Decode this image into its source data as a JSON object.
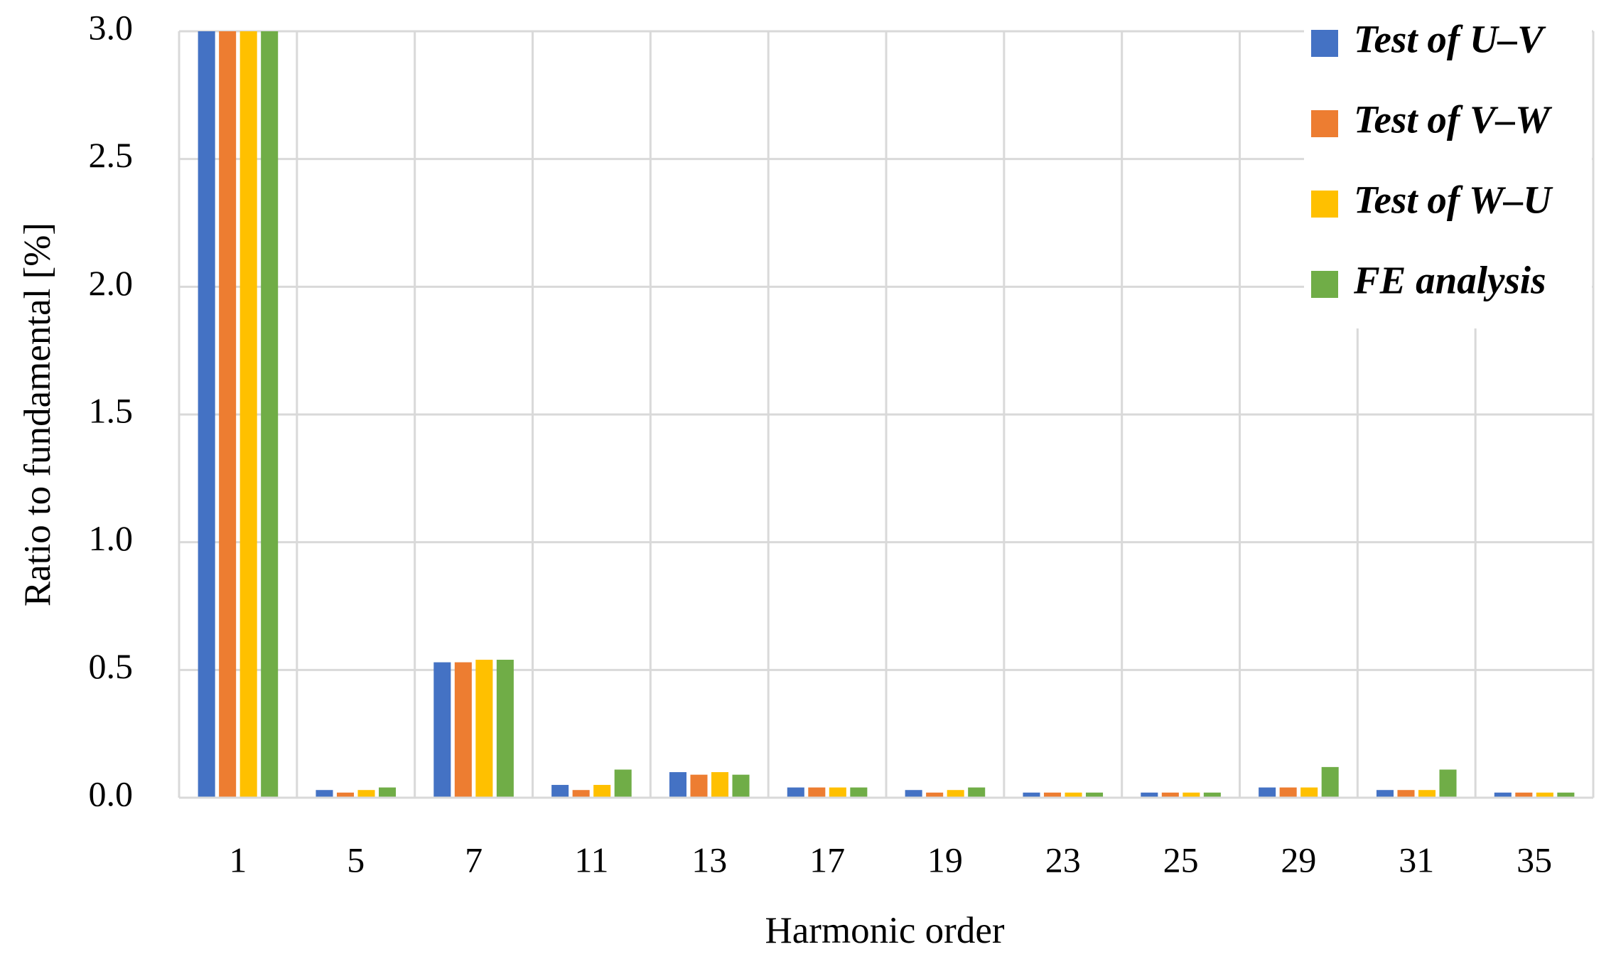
{
  "chart_data": {
    "type": "bar",
    "x_label": "Harmonic order",
    "y_label": "Ratio to fundamental [%]",
    "categories": [
      "1",
      "5",
      "7",
      "11",
      "13",
      "17",
      "19",
      "23",
      "25",
      "29",
      "31",
      "35"
    ],
    "series": [
      {
        "name": "Test of U–V",
        "color": "#4472c4",
        "values": [
          3,
          0.03,
          0.53,
          0.05,
          0.1,
          0.04,
          0.03,
          0.02,
          0.02,
          0.04,
          0.03,
          0.02
        ]
      },
      {
        "name": "Test of V–W",
        "color": "#ed7d31",
        "values": [
          3,
          0.02,
          0.53,
          0.03,
          0.09,
          0.04,
          0.02,
          0.02,
          0.02,
          0.04,
          0.03,
          0.02
        ]
      },
      {
        "name": "Test of W–U",
        "color": "#ffc000",
        "values": [
          3,
          0.03,
          0.54,
          0.05,
          0.1,
          0.04,
          0.03,
          0.02,
          0.02,
          0.04,
          0.03,
          0.02
        ]
      },
      {
        "name": "FE analysis",
        "color": "#70ad47",
        "values": [
          3,
          0.04,
          0.54,
          0.11,
          0.09,
          0.04,
          0.04,
          0.02,
          0.02,
          0.12,
          0.11,
          0.02
        ]
      }
    ],
    "ylim": [
      0,
      3
    ],
    "yticks": [
      {
        "value": 0,
        "label": "0.0"
      },
      0.5,
      {
        "value": 1,
        "label": "1.0"
      },
      1.5,
      {
        "value": 2,
        "label": "2.0"
      },
      2.5,
      {
        "value": 3,
        "label": "3.0"
      }
    ],
    "grid": true,
    "legend": "top-right"
  }
}
